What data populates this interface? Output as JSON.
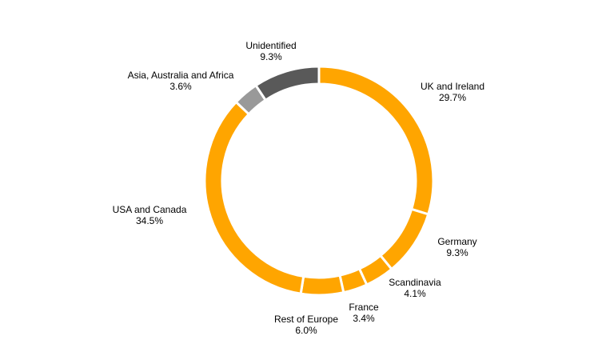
{
  "chart_data": {
    "type": "pie",
    "variant": "donut",
    "slices": [
      {
        "label": "UK and Ireland",
        "value": 29.7,
        "value_label": "29.7%",
        "color": "#FFA500"
      },
      {
        "label": "Germany",
        "value": 9.3,
        "value_label": "9.3%",
        "color": "#FFA500"
      },
      {
        "label": "Scandinavia",
        "value": 4.1,
        "value_label": "4.1%",
        "color": "#FFA500"
      },
      {
        "label": "France",
        "value": 3.4,
        "value_label": "3.4%",
        "color": "#FFA500"
      },
      {
        "label": "Rest of Europe",
        "value": 6.0,
        "value_label": "6.0%",
        "color": "#FFA500"
      },
      {
        "label": "USA and Canada",
        "value": 34.5,
        "value_label": "34.5%",
        "color": "#FFA500"
      },
      {
        "label": "Asia, Australia and Africa",
        "value": 3.6,
        "value_label": "3.6%",
        "color": "#999999"
      },
      {
        "label": "Unidentified",
        "value": 9.3,
        "value_label": "9.3%",
        "color": "#595959"
      }
    ],
    "start": "12 o'clock",
    "direction": "clockwise",
    "legend": "none",
    "separator_color": "#FFFFFF"
  }
}
